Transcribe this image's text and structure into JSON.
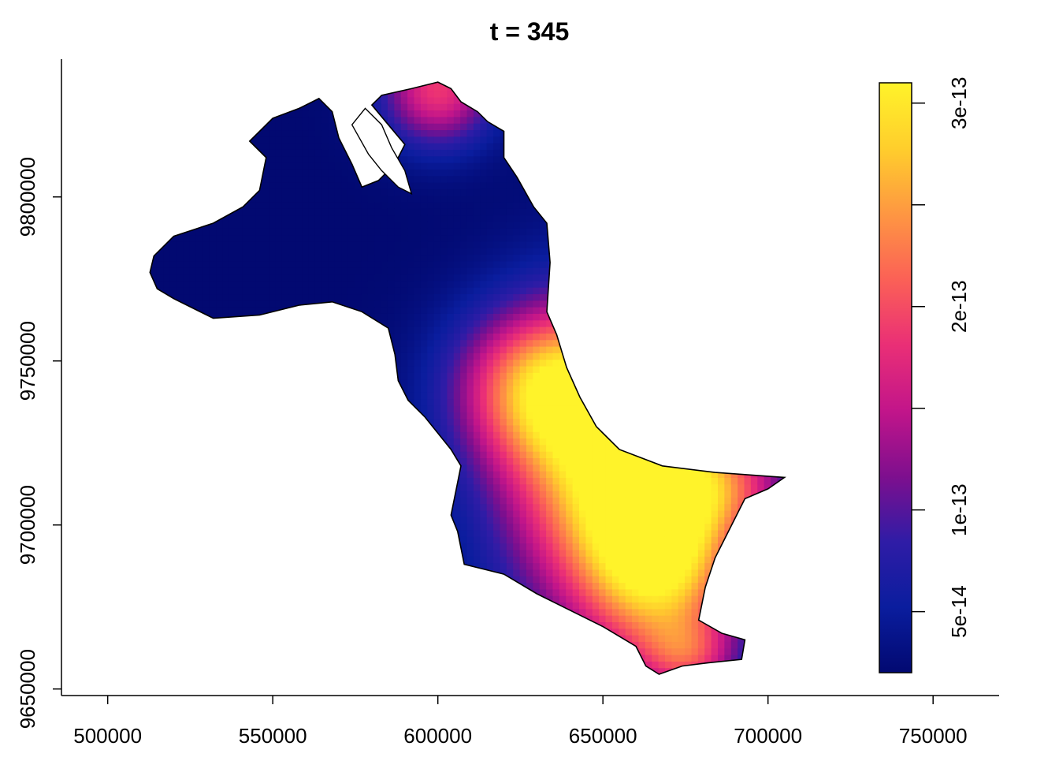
{
  "chart_data": {
    "type": "heatmap",
    "title": "t = 345",
    "xlabel": "",
    "ylabel": "",
    "xlim": [
      486000,
      770000
    ],
    "ylim": [
      9648000,
      9842000
    ],
    "x_ticks": [
      500000,
      550000,
      600000,
      650000,
      700000,
      750000
    ],
    "x_tick_labels": [
      "500000",
      "550000",
      "600000",
      "650000",
      "700000",
      "750000"
    ],
    "y_ticks": [
      9650000,
      9700000,
      9750000,
      9800000
    ],
    "y_tick_labels": [
      "9650000",
      "9700000",
      "9750000",
      "9800000"
    ],
    "colorbar": {
      "range": [
        2e-14,
        3.1e-13
      ],
      "ticks": [
        5e-14,
        1e-13,
        1.5e-13,
        2e-13,
        2.5e-13,
        3e-13
      ],
      "tick_labels": [
        "5e-14",
        "1e-13",
        "",
        "2e-13",
        "",
        "3e-13"
      ],
      "colors": [
        "#020971",
        "#0A1D9E",
        "#2F1CA6",
        "#7E0F8E",
        "#C2158A",
        "#EA2F76",
        "#FB6156",
        "#FE9742",
        "#FFCE2C",
        "#FFF32A"
      ]
    },
    "grid": false,
    "legend": "colorbar right",
    "region_outline": [
      [
        512800,
        9777000
      ],
      [
        514000,
        9782000
      ],
      [
        520000,
        9788000
      ],
      [
        532000,
        9792000
      ],
      [
        541000,
        9797000
      ],
      [
        546000,
        9802000
      ],
      [
        548000,
        9812000
      ],
      [
        543000,
        9817000
      ],
      [
        550000,
        9824000
      ],
      [
        558000,
        9827000
      ],
      [
        564000,
        9830000
      ],
      [
        568000,
        9826000
      ],
      [
        570000,
        9818000
      ],
      [
        574000,
        9810000
      ],
      [
        577000,
        9803000
      ],
      [
        582000,
        9805000
      ],
      [
        587000,
        9810000
      ],
      [
        590000,
        9816000
      ],
      [
        585000,
        9822000
      ],
      [
        580000,
        9828000
      ],
      [
        583000,
        9831000
      ],
      [
        592000,
        9833000
      ],
      [
        600000,
        9835000
      ],
      [
        604000,
        9833000
      ],
      [
        607000,
        9829000
      ],
      [
        612000,
        9826000
      ],
      [
        615000,
        9823000
      ],
      [
        620000,
        9820000
      ],
      [
        620000,
        9812000
      ],
      [
        624000,
        9806000
      ],
      [
        629000,
        9797000
      ],
      [
        633000,
        9792000
      ],
      [
        634000,
        9780000
      ],
      [
        633000,
        9765000
      ],
      [
        636000,
        9758000
      ],
      [
        639000,
        9748000
      ],
      [
        643000,
        9739000
      ],
      [
        648000,
        9730000
      ],
      [
        655000,
        9723000
      ],
      [
        668000,
        9718000
      ],
      [
        684000,
        9716000
      ],
      [
        698000,
        9715000
      ],
      [
        705000,
        9714500
      ],
      [
        700000,
        9711000
      ],
      [
        693000,
        9708000
      ],
      [
        688000,
        9698000
      ],
      [
        684000,
        9690000
      ],
      [
        681000,
        9681000
      ],
      [
        679000,
        9671000
      ],
      [
        686000,
        9667000
      ],
      [
        693000,
        9665000
      ],
      [
        692000,
        9659000
      ],
      [
        682000,
        9658000
      ],
      [
        674000,
        9657000
      ],
      [
        667000,
        9654500
      ],
      [
        663000,
        9657000
      ],
      [
        660000,
        9663000
      ],
      [
        650000,
        9669000
      ],
      [
        640000,
        9674000
      ],
      [
        630000,
        9679000
      ],
      [
        620000,
        9685000
      ],
      [
        608000,
        9688000
      ],
      [
        607000,
        9693000
      ],
      [
        606000,
        9698000
      ],
      [
        604000,
        9703000
      ],
      [
        605000,
        9708000
      ],
      [
        606000,
        9713000
      ],
      [
        607000,
        9718000
      ],
      [
        604000,
        9723000
      ],
      [
        600000,
        9728000
      ],
      [
        596000,
        9733000
      ],
      [
        591000,
        9738000
      ],
      [
        588000,
        9744000
      ],
      [
        587000,
        9752000
      ],
      [
        585000,
        9760000
      ],
      [
        577000,
        9765000
      ],
      [
        568000,
        9768000
      ],
      [
        558000,
        9767000
      ],
      [
        546000,
        9764000
      ],
      [
        532000,
        9763000
      ],
      [
        520000,
        9769000
      ],
      [
        515000,
        9772000
      ],
      [
        512800,
        9777000
      ]
    ],
    "bay_outline": [
      [
        574000,
        9822000
      ],
      [
        579000,
        9813000
      ],
      [
        583000,
        9808000
      ],
      [
        588000,
        9803000
      ],
      [
        592000,
        9801000
      ],
      [
        590000,
        9808000
      ],
      [
        586000,
        9815000
      ],
      [
        583000,
        9822000
      ],
      [
        578000,
        9827000
      ],
      [
        574000,
        9822000
      ]
    ],
    "value_field_sources": [
      {
        "x": 655000,
        "y": 9718000,
        "value": 3e-13,
        "sx": 24000,
        "sy": 32000
      },
      {
        "x": 632000,
        "y": 9742000,
        "value": 2.05e-13,
        "sx": 18000,
        "sy": 16000
      },
      {
        "x": 668000,
        "y": 9690000,
        "value": 2.1e-13,
        "sx": 16000,
        "sy": 22000
      },
      {
        "x": 688000,
        "y": 9712000,
        "value": 1e-13,
        "sx": 14000,
        "sy": 10000
      },
      {
        "x": 600000,
        "y": 9833000,
        "value": 1.85e-13,
        "sx": 12000,
        "sy": 12000
      },
      {
        "x": 676000,
        "y": 9660000,
        "value": 1.2e-13,
        "sx": 10000,
        "sy": 8000
      }
    ],
    "value_field_background": 2e-14
  }
}
